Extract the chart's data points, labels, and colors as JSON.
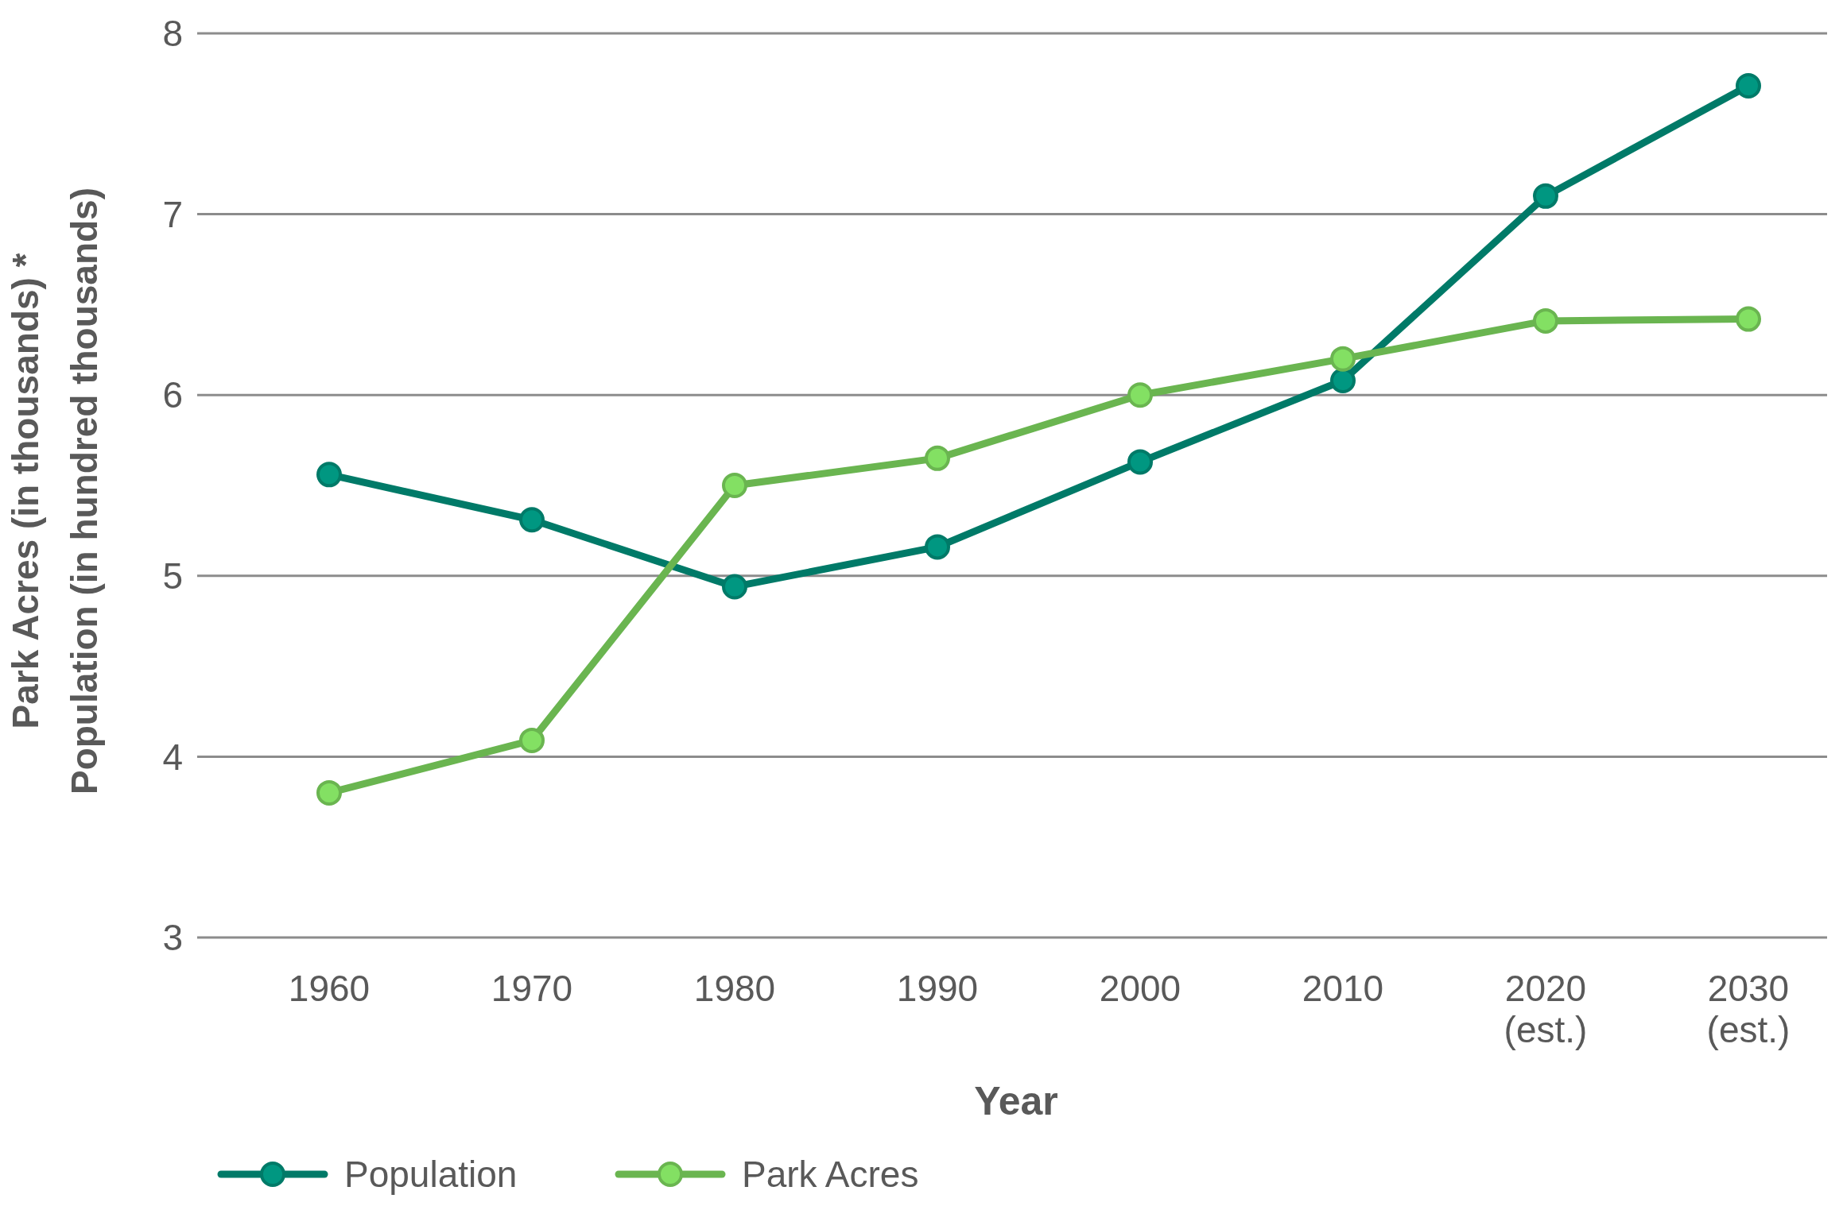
{
  "chart_data": {
    "type": "line",
    "xlabel": "Year",
    "ylabel": "Park Acres (in thousands) *\nPopulation (in hundred thousands)",
    "categories": [
      "1960",
      "1970",
      "1980",
      "1990",
      "2000",
      "2010",
      "2020 (est.)",
      "2030 (est.)"
    ],
    "series": [
      {
        "name": "Population",
        "color": "#007a68",
        "values": [
          5.56,
          5.31,
          4.94,
          5.16,
          5.63,
          6.08,
          7.1,
          7.71
        ]
      },
      {
        "name": "Park Acres",
        "color": "#6ab550",
        "values": [
          3.8,
          4.09,
          5.5,
          5.65,
          6.0,
          6.2,
          6.41,
          6.42
        ]
      }
    ],
    "ylim": [
      3,
      8
    ],
    "yticks": [
      3,
      4,
      5,
      6,
      7,
      8
    ],
    "grid": "y",
    "legend": "bottom",
    "marker": "circle",
    "line_style": "solid"
  }
}
